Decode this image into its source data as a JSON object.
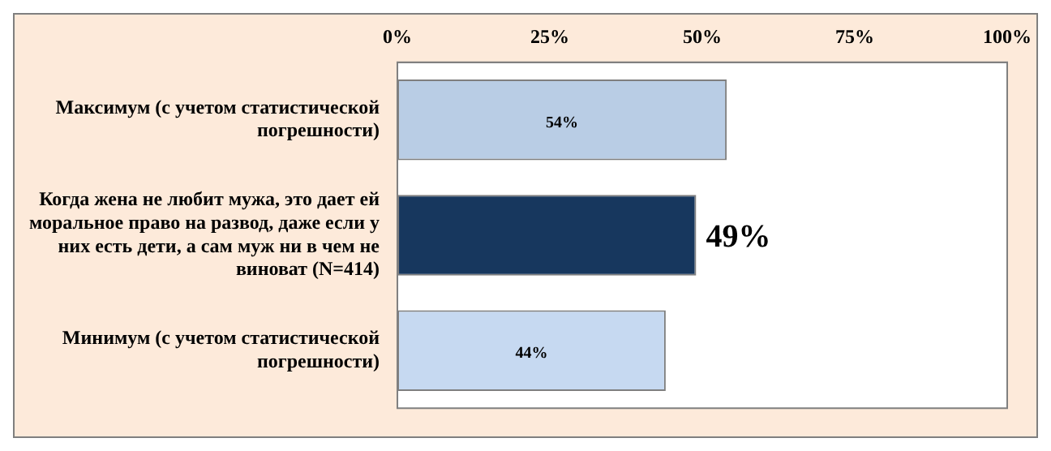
{
  "chart_data": {
    "type": "bar",
    "orientation": "horizontal",
    "categories": [
      "Максимум (с учетом статистической погрешности)",
      "Когда жена не любит мужа, это дает ей моральное право на развод, даже если у них есть дети, а сам муж ни в чем не виноват (N=414)",
      "Минимум (с учетом статистической погрешности)"
    ],
    "values": [
      54,
      49,
      44
    ],
    "colors": [
      "#b9cde5",
      "#17375e",
      "#c6d9f1"
    ],
    "value_labels": [
      "54%",
      "49%",
      "44%"
    ],
    "xlim": [
      0,
      100
    ],
    "xticks": [
      {
        "value": 0,
        "label": "0%"
      },
      {
        "value": 25,
        "label": "25%"
      },
      {
        "value": 50,
        "label": "50%"
      },
      {
        "value": 75,
        "label": "75%"
      },
      {
        "value": 100,
        "label": "100%"
      }
    ],
    "grid": false
  }
}
